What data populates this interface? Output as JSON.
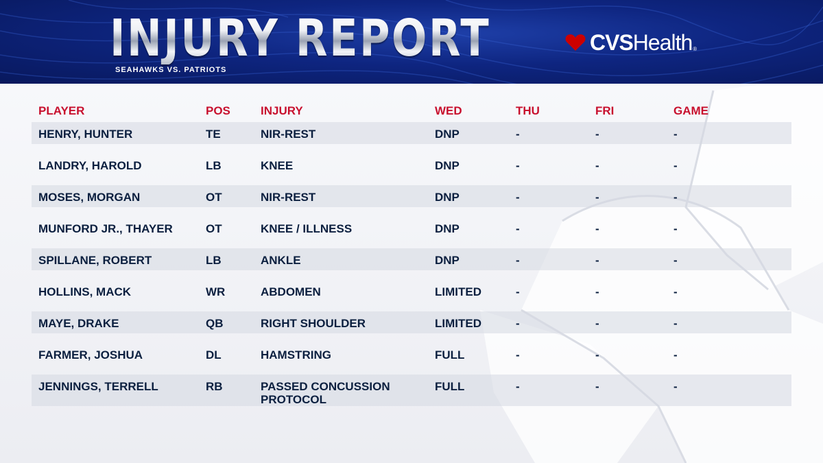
{
  "header": {
    "title": "INJURY REPORT",
    "subtitle": "SEAHAWKS VS. PATRIOTS",
    "sponsor": {
      "brand_bold": "CVS",
      "brand_light": "Health",
      "registered_mark": "®",
      "icon": "heart-icon"
    }
  },
  "colors": {
    "header_blue": "#0e2580",
    "accent_red": "#c8102e",
    "text_navy": "#0b1f3f",
    "row_shade": "#d6d9e2",
    "background": "#f4f5f8"
  },
  "table": {
    "headers": {
      "player": "PLAYER",
      "pos": "POS",
      "injury": "INJURY",
      "wed": "WED",
      "thu": "THU",
      "fri": "FRI",
      "game": "GAME"
    },
    "rows": [
      {
        "player": "HENRY, HUNTER",
        "pos": "TE",
        "injury": "NIR-REST",
        "wed": "DNP",
        "thu": "-",
        "fri": "-",
        "game": "-"
      },
      {
        "player": "LANDRY, HAROLD",
        "pos": "LB",
        "injury": "KNEE",
        "wed": "DNP",
        "thu": "-",
        "fri": "-",
        "game": "-"
      },
      {
        "player": "MOSES, MORGAN",
        "pos": "OT",
        "injury": "NIR-REST",
        "wed": "DNP",
        "thu": "-",
        "fri": "-",
        "game": "-"
      },
      {
        "player": "MUNFORD JR., THAYER",
        "pos": "OT",
        "injury": "KNEE / ILLNESS",
        "wed": "DNP",
        "thu": "-",
        "fri": "-",
        "game": "-"
      },
      {
        "player": "SPILLANE, ROBERT",
        "pos": "LB",
        "injury": "ANKLE",
        "wed": "DNP",
        "thu": "-",
        "fri": "-",
        "game": "-"
      },
      {
        "player": "HOLLINS, MACK",
        "pos": "WR",
        "injury": "ABDOMEN",
        "wed": "LIMITED",
        "thu": "-",
        "fri": "-",
        "game": "-"
      },
      {
        "player": "MAYE, DRAKE",
        "pos": "QB",
        "injury": "RIGHT SHOULDER",
        "wed": "LIMITED",
        "thu": "-",
        "fri": "-",
        "game": "-"
      },
      {
        "player": "FARMER, JOSHUA",
        "pos": "DL",
        "injury": "HAMSTRING",
        "wed": "FULL",
        "thu": "-",
        "fri": "-",
        "game": "-"
      },
      {
        "player": "JENNINGS, TERRELL",
        "pos": "RB",
        "injury": "PASSED CONCUSSION\nPROTOCOL",
        "wed": "FULL",
        "thu": "-",
        "fri": "-",
        "game": "-"
      }
    ]
  }
}
